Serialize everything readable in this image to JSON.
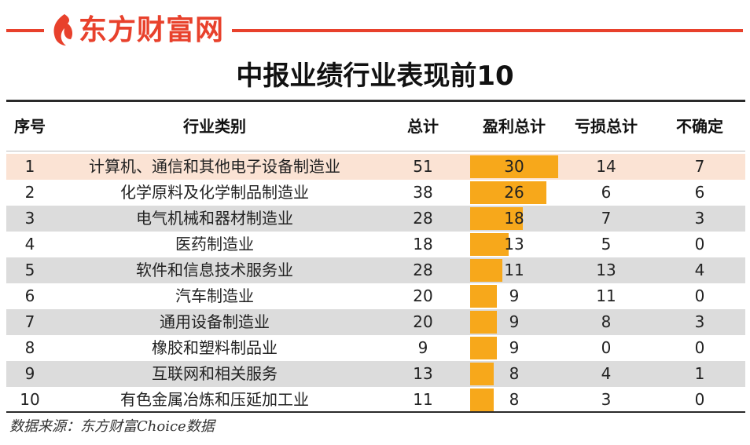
{
  "brand": {
    "name": "东方财富网",
    "color": "#e8412c",
    "logo_icon": "flame-logo-icon"
  },
  "title": "中报业绩行业表现前10",
  "source": "数据来源：东方财富Choice数据",
  "colors": {
    "bar": "#f7a81b",
    "row_shade": "#dcdcdc",
    "row_highlight": "#fbe3d4"
  },
  "chart_data": {
    "type": "table",
    "columns": [
      "序号",
      "行业类别",
      "总计",
      "盈利总计",
      "亏损总计",
      "不确定"
    ],
    "bar_column": "盈利总计",
    "bar_max": 30,
    "rows": [
      {
        "rank": "1",
        "industry": "计算机、通信和其他电子设备制造业",
        "total": 51,
        "profit": 30,
        "loss": 14,
        "uncertain": 7
      },
      {
        "rank": "2",
        "industry": "化学原料及化学制品制造业",
        "total": 38,
        "profit": 26,
        "loss": 6,
        "uncertain": 6
      },
      {
        "rank": "3",
        "industry": "电气机械和器材制造业",
        "total": 28,
        "profit": 18,
        "loss": 7,
        "uncertain": 3
      },
      {
        "rank": "4",
        "industry": "医药制造业",
        "total": 18,
        "profit": 13,
        "loss": 5,
        "uncertain": 0
      },
      {
        "rank": "5",
        "industry": "软件和信息技术服务业",
        "total": 28,
        "profit": 11,
        "loss": 13,
        "uncertain": 4
      },
      {
        "rank": "6",
        "industry": "汽车制造业",
        "total": 20,
        "profit": 9,
        "loss": 11,
        "uncertain": 0
      },
      {
        "rank": "7",
        "industry": "通用设备制造业",
        "total": 20,
        "profit": 9,
        "loss": 8,
        "uncertain": 3
      },
      {
        "rank": "8",
        "industry": "橡胶和塑料制品业",
        "total": 9,
        "profit": 9,
        "loss": 0,
        "uncertain": 0
      },
      {
        "rank": "9",
        "industry": "互联网和相关服务",
        "total": 13,
        "profit": 8,
        "loss": 4,
        "uncertain": 1
      },
      {
        "rank": "10",
        "industry": "有色金属冶炼和压延加工业",
        "total": 11,
        "profit": 8,
        "loss": 3,
        "uncertain": 0
      }
    ]
  }
}
